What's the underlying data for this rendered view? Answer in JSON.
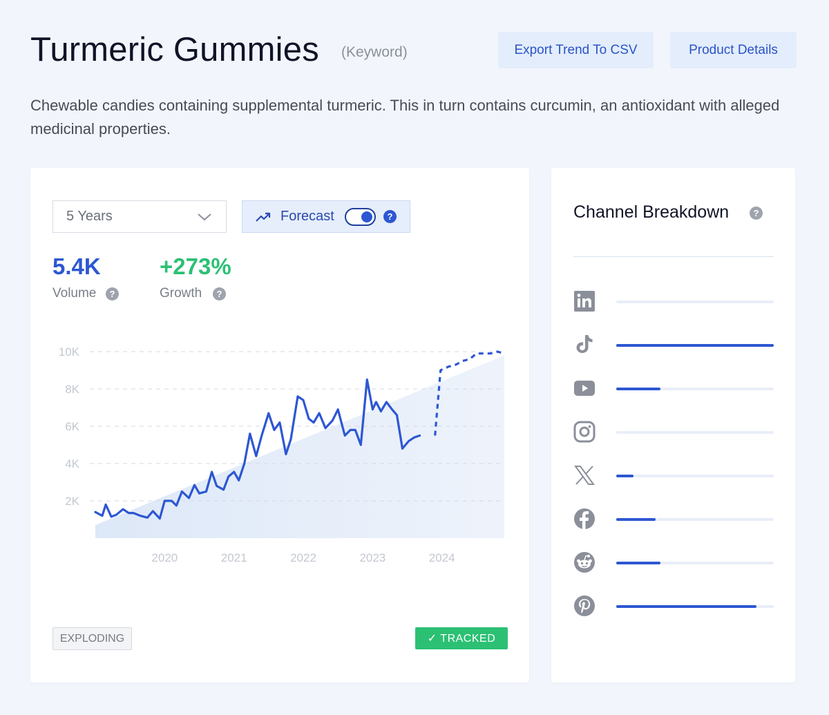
{
  "header": {
    "title": "Turmeric Gummies",
    "tag": "(Keyword)",
    "export_label": "Export Trend To CSV",
    "details_label": "Product Details"
  },
  "description": "Chewable candies containing supplemental turmeric. This in turn contains curcumin, an antioxidant with alleged medicinal properties.",
  "controls": {
    "range_value": "5 Years",
    "forecast_label": "Forecast",
    "forecast_enabled": true
  },
  "metrics": {
    "volume_value": "5.4K",
    "volume_label": "Volume",
    "growth_value": "+273%",
    "growth_label": "Growth"
  },
  "chart_data": {
    "type": "line",
    "y_ticks": [
      "10K",
      "8K",
      "6K",
      "4K",
      "2K"
    ],
    "x_ticks": [
      "2020",
      "2021",
      "2022",
      "2023",
      "2024"
    ],
    "ylim": [
      0,
      10000
    ],
    "xlim": [
      2019.0,
      2024.9
    ],
    "grid": true,
    "series": [
      {
        "style": "solid",
        "color": "#2d57d2",
        "x": [
          2019.0,
          2019.1,
          2019.15,
          2019.23,
          2019.3,
          2019.4,
          2019.48,
          2019.55,
          2019.65,
          2019.75,
          2019.83,
          2019.93,
          2020.0,
          2020.1,
          2020.17,
          2020.25,
          2020.35,
          2020.43,
          2020.5,
          2020.6,
          2020.68,
          2020.75,
          2020.85,
          2020.92,
          2021.0,
          2021.07,
          2021.15,
          2021.23,
          2021.32,
          2021.4,
          2021.5,
          2021.58,
          2021.66,
          2021.75,
          2021.82,
          2021.92,
          2022.0,
          2022.08,
          2022.15,
          2022.23,
          2022.32,
          2022.42,
          2022.5,
          2022.6,
          2022.68,
          2022.75,
          2022.83,
          2022.92,
          2023.0,
          2023.05,
          2023.12,
          2023.2,
          2023.28,
          2023.35,
          2023.43,
          2023.52,
          2023.6,
          2023.68,
          2023.75,
          2023.82,
          2023.9
        ],
        "y": [
          1400,
          1200,
          1800,
          1150,
          1250,
          1550,
          1350,
          1350,
          1200,
          1100,
          1450,
          1050,
          2000,
          2000,
          1750,
          2500,
          2150,
          2850,
          2400,
          2500,
          3550,
          2800,
          2600,
          3300,
          3550,
          3100,
          4000,
          5600,
          4400,
          5500,
          6700,
          5800,
          6200,
          4500,
          5300,
          7600,
          7400,
          6400,
          6200,
          6700,
          5900,
          6300,
          6900,
          5500,
          5800,
          5800,
          5000,
          8500,
          6900,
          7300,
          6800,
          7300,
          6900,
          6600,
          4800,
          5200,
          5400,
          5500,
          null,
          null,
          null
        ]
      },
      {
        "style": "dashed",
        "color": "#2d57d2",
        "x": [
          2023.9,
          2023.98,
          2024.1,
          2024.2,
          2024.3,
          2024.4,
          2024.5,
          2024.6,
          2024.7,
          2024.8,
          2024.9
        ],
        "y": [
          5500,
          9000,
          9200,
          9300,
          9500,
          9600,
          9900,
          9900,
          9900,
          10000,
          9900
        ]
      }
    ],
    "trend_area": {
      "color": "#dbe7f8",
      "x": [
        2019.0,
        2024.9
      ],
      "y": [
        700,
        9800
      ]
    }
  },
  "status": {
    "exploding_label": "EXPLODING",
    "tracked_label": "✓ TRACKED"
  },
  "sidebar": {
    "title": "Channel Breakdown",
    "channels": [
      {
        "icon": "linkedin-icon",
        "level": 0.0
      },
      {
        "icon": "tiktok-icon",
        "level": 1.0
      },
      {
        "icon": "youtube-icon",
        "level": 0.28
      },
      {
        "icon": "instagram-icon",
        "level": 0.0
      },
      {
        "icon": "x-icon",
        "level": 0.11
      },
      {
        "icon": "facebook-icon",
        "level": 0.25
      },
      {
        "icon": "reddit-icon",
        "level": 0.28
      },
      {
        "icon": "pinterest-icon",
        "level": 0.89
      }
    ]
  }
}
